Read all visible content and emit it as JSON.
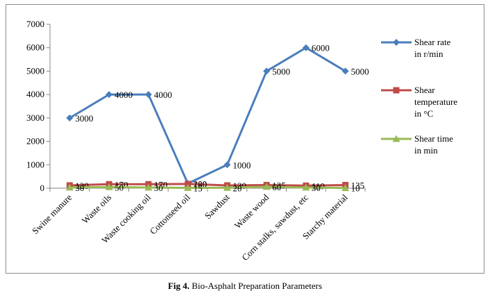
{
  "chart_data": {
    "type": "line",
    "categories": [
      "Swine manure",
      "Waste oils",
      "Waste cooking oil",
      "Cottonseed oil",
      "Sawdust",
      "Waste wood",
      "Corn stalks, sawdust, etc",
      "Starchy material"
    ],
    "ylim": [
      0,
      7000
    ],
    "yticks": [
      0,
      1000,
      2000,
      3000,
      4000,
      5000,
      6000,
      7000
    ],
    "grid": false,
    "legend_position": "right",
    "series": [
      {
        "name": "Shear rate in r/min",
        "legend_lines": [
          "Shear rate",
          "in r/min"
        ],
        "values": [
          3000,
          4000,
          4000,
          200,
          1000,
          5000,
          6000,
          5000
        ],
        "labels": [
          "3000",
          "4000",
          "4000",
          "200",
          "1000",
          "5000",
          "6000",
          "5000"
        ],
        "color": "#4a7ebb",
        "marker": "diamond"
      },
      {
        "name": "Shear temperature in °C",
        "legend_lines": [
          "Shear",
          "temperature",
          "in °C"
        ],
        "values": [
          120,
          170,
          170,
          180,
          120,
          135,
          110,
          135
        ],
        "labels": [
          "120",
          "170",
          "170",
          "180",
          "120",
          "135",
          "110",
          "135"
        ],
        "color": "#be4b48",
        "marker": "square"
      },
      {
        "name": "Shear time in min",
        "legend_lines": [
          "Shear time",
          "in min"
        ],
        "values": [
          30,
          50,
          30,
          15,
          20,
          60,
          30,
          10
        ],
        "labels": [
          "30",
          "50",
          "30",
          "15",
          "20",
          "60",
          "30",
          "10"
        ],
        "color": "#98b954",
        "marker": "triangle"
      }
    ]
  },
  "caption": {
    "label": "Fig 4.",
    "text": " Bio-Asphalt Preparation Parameters"
  }
}
